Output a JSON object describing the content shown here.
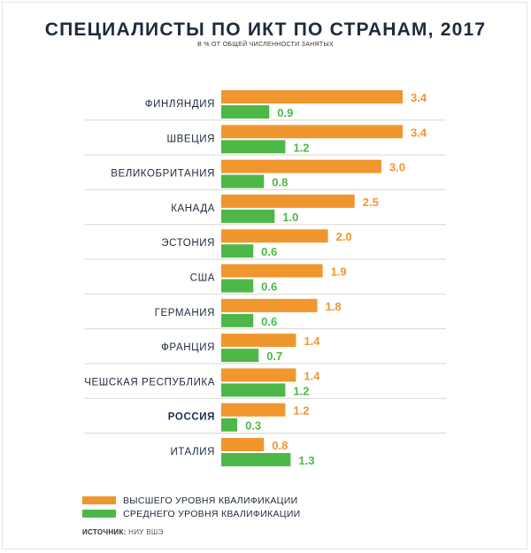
{
  "chart_data": {
    "type": "bar",
    "orientation": "horizontal",
    "title": "СПЕЦИАЛИСТЫ ПО ИКТ ПО СТРАНАМ, 2017",
    "subtitle": "В % ОТ ОБЩЕЙ ЧИСЛЕННОСТИ ЗАНЯТЫХ",
    "categories": [
      "ФИНЛЯНДИЯ",
      "ШВЕЦИЯ",
      "ВЕЛИКОБРИТАНИЯ",
      "КАНАДА",
      "ЭСТОНИЯ",
      "США",
      "ГЕРМАНИЯ",
      "ФРАНЦИЯ",
      "ЧЕШСКАЯ РЕСПУБЛИКА",
      "РОССИЯ",
      "ИТАЛИЯ"
    ],
    "highlight_category": "РОССИЯ",
    "series": [
      {
        "name": "ВЫСШЕГО УРОВНЯ КВАЛИФИКАЦИИ",
        "color": "#f0962f",
        "values": [
          3.4,
          3.4,
          3.0,
          2.5,
          2.0,
          1.9,
          1.8,
          1.4,
          1.4,
          1.2,
          0.8
        ],
        "labels": [
          "3.4",
          "3.4",
          "3.0",
          "2.5",
          "2.0",
          "1.9",
          "1.8",
          "1.4",
          "1.4",
          "1.2",
          "0.8"
        ]
      },
      {
        "name": "СРЕДНЕГО УРОВНЯ КВАЛИФИКАЦИИ",
        "color": "#4db848",
        "values": [
          0.9,
          1.2,
          0.8,
          1.0,
          0.6,
          0.6,
          0.6,
          0.7,
          1.2,
          0.3,
          1.3
        ],
        "labels": [
          "0.9",
          "1.2",
          "0.8",
          "1.0",
          "0.6",
          "0.6",
          "0.6",
          "0.7",
          "1.2",
          "0.3",
          "1.3"
        ]
      }
    ],
    "xlim": [
      0,
      3.4
    ],
    "grid": false,
    "legend_position": "bottom-left"
  },
  "source": {
    "label": "ИСТОЧНИК:",
    "text": "НИУ ВШЭ"
  }
}
